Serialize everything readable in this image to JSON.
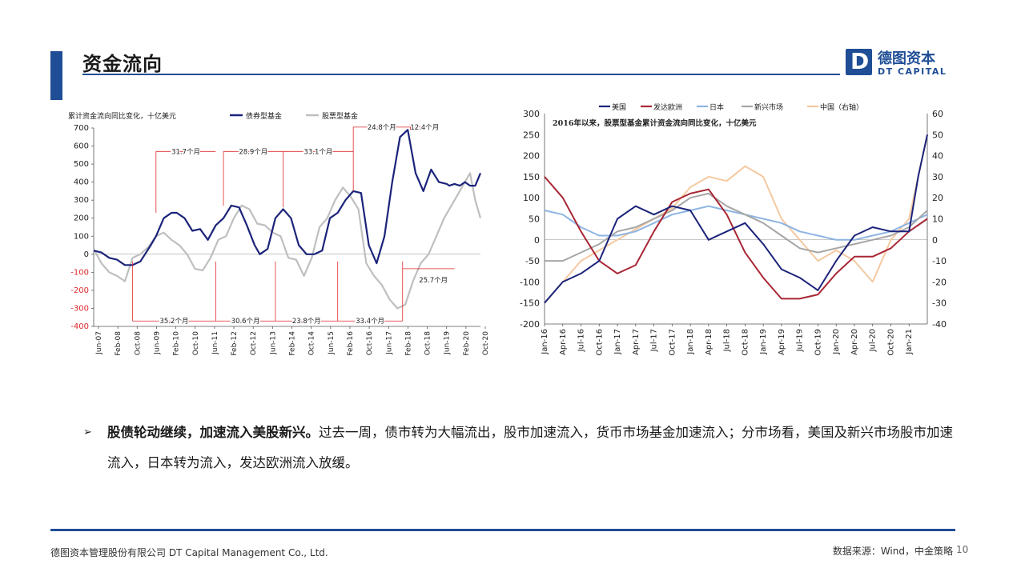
{
  "header": {
    "title": "资金流向",
    "logo_mark": "D",
    "logo_cn": "德图资本",
    "logo_en": "DT CAPITAL"
  },
  "colors": {
    "brand": "#1f4e96",
    "navy": "#1b237a",
    "gray_series": "#bfbfbf",
    "red_annot": "#e0282a"
  },
  "chart_data": [
    {
      "type": "line",
      "title": "累计资金流向同比变化，十亿美元",
      "legend_position": "top",
      "ylim": [
        -400,
        700
      ],
      "yticks": [
        -400,
        -300,
        -200,
        -100,
        0,
        100,
        200,
        300,
        400,
        500,
        600,
        700
      ],
      "xticks": [
        "Jun-07",
        "Feb-08",
        "Oct-08",
        "Jun-09",
        "Feb-10",
        "Oct-10",
        "Jun-11",
        "Feb-12",
        "Oct-12",
        "Jun-13",
        "Feb-14",
        "Oct-14",
        "Jun-15",
        "Feb-16",
        "Oct-16",
        "Jun-17",
        "Feb-18",
        "Oct-18",
        "Jun-19",
        "Feb-20",
        "Oct-20"
      ],
      "series": [
        {
          "name": "债券型基金",
          "color": "#1b237a",
          "x": [
            0,
            3,
            6,
            9,
            12,
            15,
            18,
            22,
            24,
            27,
            30,
            32,
            35,
            38,
            41,
            44,
            47,
            50,
            53,
            56,
            59,
            62,
            64,
            67,
            70,
            73,
            76,
            79,
            82,
            85,
            88,
            91,
            94,
            97,
            100,
            103,
            106,
            109,
            112,
            115,
            118,
            121,
            124,
            127,
            130,
            133,
            136,
            137,
            139,
            141,
            143,
            145,
            147,
            149
          ],
          "y": [
            20,
            10,
            -20,
            -30,
            -60,
            -60,
            -40,
            50,
            100,
            200,
            230,
            230,
            200,
            130,
            140,
            80,
            160,
            200,
            270,
            260,
            160,
            50,
            0,
            30,
            200,
            250,
            200,
            50,
            0,
            0,
            20,
            200,
            230,
            300,
            350,
            340,
            50,
            -50,
            100,
            400,
            650,
            690,
            450,
            350,
            470,
            400,
            390,
            380,
            390,
            380,
            400,
            380,
            380,
            450
          ]
        },
        {
          "name": "股票型基金",
          "color": "#bfbfbf",
          "x": [
            0,
            3,
            6,
            9,
            12,
            15,
            18,
            21,
            24,
            27,
            30,
            33,
            36,
            39,
            42,
            45,
            48,
            51,
            54,
            57,
            60,
            63,
            66,
            69,
            72,
            75,
            78,
            81,
            84,
            87,
            90,
            93,
            96,
            99,
            102,
            105,
            108,
            111,
            114,
            117,
            120,
            123,
            126,
            129,
            132,
            135,
            137,
            139,
            141,
            143,
            145,
            147,
            149
          ],
          "y": [
            30,
            -50,
            -100,
            -120,
            -150,
            -20,
            0,
            40,
            100,
            120,
            80,
            50,
            0,
            -80,
            -90,
            -20,
            80,
            100,
            200,
            270,
            250,
            170,
            160,
            120,
            100,
            -20,
            -30,
            -120,
            -20,
            150,
            200,
            300,
            370,
            320,
            250,
            -50,
            -120,
            -170,
            -250,
            -300,
            -280,
            -150,
            -50,
            0,
            100,
            200,
            250,
            300,
            350,
            400,
            450,
            300,
            200
          ]
        }
      ],
      "annotations": {
        "top": [
          "31.7个月",
          "28.9个月",
          "33.1个月",
          "24.8个月",
          "12.4个月"
        ],
        "bottom": [
          "35.2个月",
          "30.6个月",
          "23.8个月",
          "33.4个月",
          "25.7个月"
        ]
      }
    },
    {
      "type": "line",
      "title": "2016年以来，股票型基金累计资金流向同比变化，十亿美元",
      "legend_position": "top",
      "ylim": [
        -200,
        300
      ],
      "yticks": [
        -200,
        -150,
        -100,
        -50,
        0,
        50,
        100,
        150,
        200,
        250,
        300
      ],
      "ylim_right": [
        -40,
        60
      ],
      "yticks_right": [
        -40,
        -30,
        -20,
        -10,
        0,
        10,
        20,
        30,
        40,
        50,
        60
      ],
      "xticks": [
        "Jan-16",
        "Apr-16",
        "Jul-16",
        "Oct-16",
        "Jan-17",
        "Apr-17",
        "Jul-17",
        "Oct-17",
        "Jan-18",
        "Apr-18",
        "Jul-18",
        "Oct-18",
        "Jan-19",
        "Apr-19",
        "Jul-19",
        "Oct-19",
        "Jan-20",
        "Apr-20",
        "Jul-20",
        "Oct-20",
        "Jan-21"
      ],
      "series": [
        {
          "name": "美国",
          "color": "#1b237a",
          "axis": "left",
          "x": [
            0,
            1,
            2,
            3,
            4,
            5,
            6,
            7,
            8,
            9,
            10,
            11,
            12,
            13,
            14,
            15,
            16,
            17,
            18,
            19,
            20,
            20.5,
            21
          ],
          "y": [
            -150,
            -100,
            -80,
            -50,
            50,
            80,
            60,
            80,
            70,
            0,
            20,
            40,
            -10,
            -70,
            -90,
            -120,
            -50,
            10,
            30,
            20,
            20,
            150,
            250
          ]
        },
        {
          "name": "发达欧洲",
          "color": "#a82634",
          "axis": "left",
          "x": [
            0,
            1,
            2,
            3,
            4,
            5,
            6,
            7,
            8,
            9,
            10,
            11,
            12,
            13,
            14,
            15,
            16,
            17,
            18,
            19,
            20,
            21
          ],
          "y": [
            150,
            100,
            20,
            -50,
            -80,
            -60,
            20,
            90,
            110,
            120,
            60,
            -30,
            -90,
            -140,
            -140,
            -130,
            -80,
            -40,
            -40,
            -20,
            20,
            50
          ]
        },
        {
          "name": "日本",
          "color": "#8eb4e3",
          "axis": "left",
          "x": [
            0,
            1,
            2,
            3,
            4,
            5,
            6,
            7,
            8,
            9,
            10,
            11,
            12,
            13,
            14,
            15,
            16,
            17,
            18,
            19,
            20,
            21
          ],
          "y": [
            70,
            60,
            30,
            10,
            10,
            20,
            40,
            60,
            70,
            80,
            70,
            60,
            50,
            40,
            20,
            10,
            0,
            0,
            10,
            20,
            40,
            60
          ]
        },
        {
          "name": "新兴市场",
          "color": "#a6a6a6",
          "axis": "left",
          "x": [
            0,
            1,
            2,
            3,
            4,
            5,
            6,
            7,
            8,
            9,
            10,
            11,
            12,
            13,
            14,
            15,
            16,
            17,
            18,
            19,
            20,
            21
          ],
          "y": [
            -50,
            -50,
            -30,
            -10,
            20,
            30,
            50,
            70,
            100,
            110,
            80,
            60,
            40,
            10,
            -20,
            -30,
            -20,
            -10,
            0,
            10,
            30,
            70
          ]
        },
        {
          "name": "中国（右轴）",
          "color": "#f5c9a0",
          "axis": "right",
          "x": [
            0,
            1,
            2,
            3,
            4,
            5,
            6,
            7,
            8,
            9,
            10,
            11,
            12,
            13,
            14,
            15,
            16,
            17,
            18,
            19,
            20,
            21
          ],
          "y": [
            -30,
            -20,
            -10,
            -5,
            0,
            5,
            10,
            15,
            25,
            30,
            28,
            35,
            30,
            10,
            0,
            -10,
            -5,
            -10,
            -20,
            0,
            10,
            50
          ]
        }
      ]
    }
  ],
  "bullet": {
    "marker": "➢",
    "bold": "股债轮动继续，加速流入美股新兴。",
    "text": "过去一周，债市转为大幅流出，股市加速流入，货币市场基金加速流入；分市场看，美国及新兴市场股市加速流入，日本转为流入，发达欧洲流入放缓。"
  },
  "footer": {
    "company": "德图资本管理股份有限公司  DT Capital Management Co., Ltd.",
    "source": "数据来源：Wind，中金策略",
    "page": "10"
  }
}
